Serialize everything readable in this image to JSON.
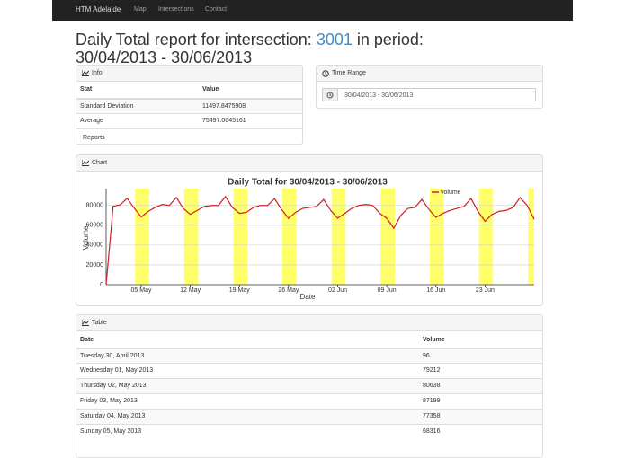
{
  "navbar": {
    "brand": "HTM Adelaide",
    "links": [
      "Map",
      "Intersections",
      "Contact"
    ]
  },
  "header": {
    "title_prefix": "Daily Total report for intersection:",
    "intersection": "3001",
    "title_suffix": "in period: 30/04/2013 - 30/06/2013"
  },
  "info": {
    "title": "Info",
    "columns": [
      "Stat",
      "Value"
    ],
    "rows": [
      [
        "Standard Deviation",
        11497.8475908
      ],
      [
        "Average",
        75497.0645161
      ]
    ],
    "footer": "Reports"
  },
  "time_range": {
    "title": "Time Range",
    "value": "30/04/2013 - 30/06/2013"
  },
  "chart_panel_title": "Chart",
  "chart_data": {
    "type": "line",
    "title": "Daily Total for 30/04/2013 - 30/06/2013",
    "x_label": "Date",
    "y_label": "Volume",
    "categories": [
      null,
      null,
      null,
      null,
      null,
      "05 May",
      null,
      null,
      null,
      null,
      null,
      null,
      "12 May",
      null,
      null,
      null,
      null,
      null,
      null,
      "19 May",
      null,
      null,
      null,
      null,
      null,
      null,
      "26 May",
      null,
      null,
      null,
      null,
      null,
      null,
      "02 Jun",
      null,
      null,
      null,
      null,
      null,
      null,
      "09 Jun",
      null,
      null,
      null,
      null,
      null,
      null,
      "16 Jun",
      null,
      null,
      null,
      null,
      null,
      null,
      "23 Jun",
      null,
      null,
      null,
      null,
      null,
      null,
      null
    ],
    "series": [
      {
        "name": "volume",
        "color": "#cc2222",
        "values": [
          96,
          79212,
          80638,
          87199,
          77358,
          68316,
          74000,
          78000,
          81000,
          80000,
          88000,
          77000,
          71000,
          75000,
          79000,
          80000,
          80000,
          89000,
          78000,
          72000,
          73000,
          78000,
          80000,
          80000,
          87000,
          76000,
          67000,
          73000,
          77000,
          78000,
          79000,
          86000,
          75000,
          67000,
          72000,
          77000,
          80000,
          81000,
          80000,
          72000,
          67000,
          57000,
          70000,
          77000,
          78000,
          86000,
          76000,
          68000,
          72000,
          75000,
          77000,
          79000,
          87000,
          74000,
          64000,
          71000,
          74000,
          75000,
          78000,
          88000,
          80000,
          66000
        ]
      }
    ],
    "ylim": [
      0,
      97000
    ],
    "yticks": [
      0,
      20000,
      40000,
      60000,
      80000
    ],
    "grid": true,
    "legend": "top-right"
  },
  "table": {
    "title": "Table",
    "columns": [
      "Date",
      "Volume"
    ],
    "rows": [
      [
        "Tuesday 30, April 2013",
        96
      ],
      [
        "Wednesday 01, May 2013",
        79212
      ],
      [
        "Thursday 02, May 2013",
        80638
      ],
      [
        "Friday 03, May 2013",
        87199
      ],
      [
        "Saturday 04, May 2013",
        77358
      ],
      [
        "Sunday 05, May 2013",
        68316
      ]
    ]
  }
}
